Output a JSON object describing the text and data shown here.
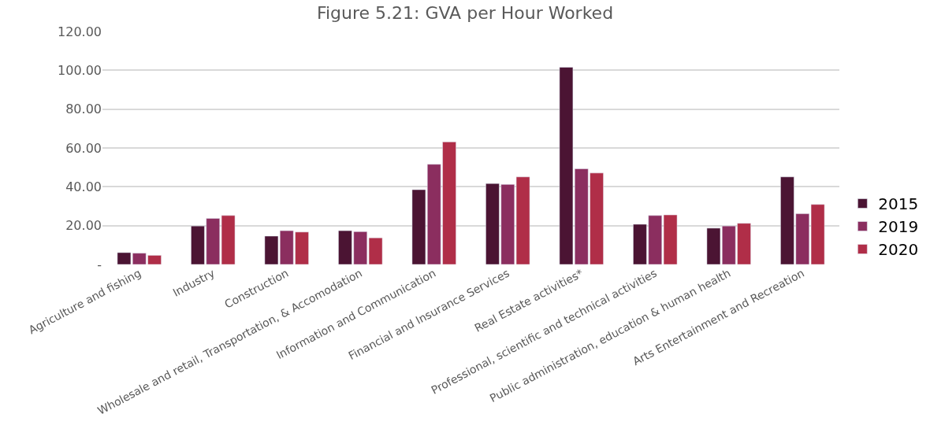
{
  "chart_data": {
    "type": "bar",
    "title": "Figure 5.21: GVA per Hour Worked",
    "categories": [
      "Agriculture and fishing",
      "Industry",
      "Construction",
      "Wholesale and retail, Transportation, & Accomodation",
      "Information and Communication",
      "Financial and Insurance Services",
      "Real Estate activities*",
      "Professional, scientific and technical activities",
      "Public administration, education & human health",
      "Arts Entertainment and Recreation"
    ],
    "series": [
      {
        "name": "2015",
        "color": "#4b1433",
        "values": [
          6.1,
          19.8,
          14.6,
          17.4,
          38.5,
          41.7,
          101.6,
          20.7,
          18.7,
          45.1
        ]
      },
      {
        "name": "2019",
        "color": "#8b2e5f",
        "values": [
          5.8,
          23.7,
          17.4,
          16.9,
          51.6,
          41.2,
          49.3,
          25.2,
          19.8,
          26.1
        ]
      },
      {
        "name": "2020",
        "color": "#b02e48",
        "values": [
          4.7,
          25.2,
          16.7,
          13.7,
          63.1,
          45.1,
          47.1,
          25.5,
          21.2,
          30.9
        ]
      }
    ],
    "ylim": [
      0,
      120
    ],
    "yticks": [
      {
        "value": 0,
        "label": "-"
      },
      {
        "value": 20,
        "label": "20.00"
      },
      {
        "value": 40,
        "label": "40.00"
      },
      {
        "value": 60,
        "label": "60.00"
      },
      {
        "value": 80,
        "label": "80.00"
      },
      {
        "value": 100,
        "label": "100.00"
      },
      {
        "value": 120,
        "label": "120.00"
      }
    ],
    "grid": "y",
    "legend": "right"
  }
}
